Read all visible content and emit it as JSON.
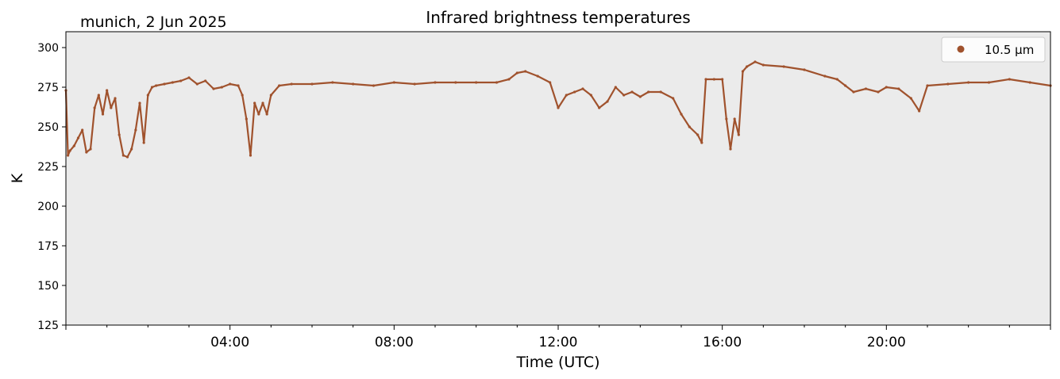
{
  "header": {
    "location_date": "munich, 2 Jun 2025"
  },
  "chart_data": {
    "type": "scatter",
    "title": "Infrared brightness temperatures",
    "xlabel": "Time (UTC)",
    "ylabel": "K",
    "xlim": [
      "00:00",
      "24:00"
    ],
    "ylim": [
      125,
      310
    ],
    "x_ticks": [
      "04:00",
      "08:00",
      "12:00",
      "16:00",
      "20:00"
    ],
    "y_ticks": [
      125,
      150,
      175,
      200,
      225,
      250,
      275,
      300
    ],
    "grid": false,
    "legend_position": "top-right",
    "colors": {
      "series": "#a0522d",
      "plot_background": "#ebebeb"
    },
    "series": [
      {
        "name": "10.5 µm",
        "x_hours": [
          0.0,
          0.05,
          0.1,
          0.2,
          0.3,
          0.4,
          0.5,
          0.6,
          0.7,
          0.8,
          0.9,
          1.0,
          1.1,
          1.2,
          1.3,
          1.4,
          1.5,
          1.6,
          1.7,
          1.8,
          1.9,
          2.0,
          2.1,
          2.2,
          2.4,
          2.6,
          2.8,
          3.0,
          3.2,
          3.4,
          3.6,
          3.8,
          4.0,
          4.2,
          4.3,
          4.4,
          4.5,
          4.6,
          4.7,
          4.8,
          4.9,
          5.0,
          5.2,
          5.5,
          6.0,
          6.5,
          7.0,
          7.5,
          8.0,
          8.5,
          9.0,
          9.5,
          10.0,
          10.5,
          10.8,
          11.0,
          11.2,
          11.5,
          11.8,
          12.0,
          12.2,
          12.4,
          12.6,
          12.8,
          13.0,
          13.2,
          13.4,
          13.6,
          13.8,
          14.0,
          14.2,
          14.5,
          14.8,
          15.0,
          15.2,
          15.4,
          15.5,
          15.6,
          15.8,
          16.0,
          16.1,
          16.2,
          16.3,
          16.4,
          16.5,
          16.6,
          16.8,
          17.0,
          17.5,
          18.0,
          18.5,
          18.8,
          19.0,
          19.2,
          19.5,
          19.8,
          20.0,
          20.3,
          20.6,
          20.8,
          21.0,
          21.5,
          22.0,
          22.5,
          23.0,
          23.5,
          24.0
        ],
        "values": [
          273,
          232,
          235,
          238,
          243,
          248,
          234,
          236,
          262,
          270,
          258,
          273,
          262,
          268,
          245,
          232,
          231,
          236,
          248,
          265,
          240,
          270,
          275,
          276,
          277,
          278,
          279,
          281,
          277,
          279,
          274,
          275,
          277,
          276,
          270,
          255,
          232,
          265,
          258,
          265,
          258,
          270,
          276,
          277,
          277,
          278,
          277,
          276,
          278,
          277,
          278,
          278,
          278,
          278,
          280,
          284,
          285,
          282,
          278,
          262,
          270,
          272,
          274,
          270,
          262,
          266,
          275,
          270,
          272,
          269,
          272,
          272,
          268,
          258,
          250,
          245,
          240,
          280,
          280,
          280,
          255,
          236,
          255,
          245,
          285,
          288,
          291,
          289,
          288,
          286,
          282,
          280,
          276,
          272,
          274,
          272,
          275,
          274,
          268,
          260,
          276,
          277,
          278,
          278,
          280,
          278,
          276
        ]
      }
    ]
  }
}
